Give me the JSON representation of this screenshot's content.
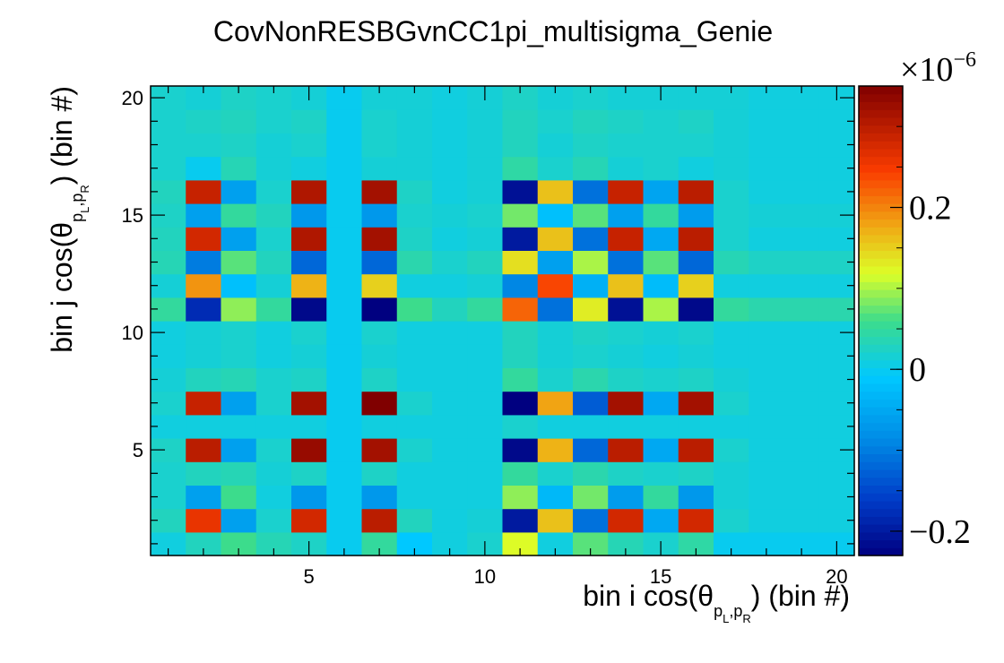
{
  "chart_data": {
    "type": "heatmap",
    "title": "CovNonRESBGvnCC1pi_multisigma_Genie",
    "xlabel": {
      "prefix": "bin i cos(θ",
      "sub1": "p",
      "sub_l": "L",
      "sub_sep": ",",
      "sub2": "p",
      "sub_r": "R",
      "suffix": ") (bin #)"
    },
    "ylabel": {
      "prefix": "bin j cos(θ",
      "sub1": "p",
      "sub_l": "L",
      "sub_sep": ",",
      "sub2": "p",
      "sub_r": "R",
      "suffix": ") (bin #)"
    },
    "xlim": [
      0.5,
      20.5
    ],
    "ylim": [
      0.5,
      20.5
    ],
    "x_tick_labels": [
      "5",
      "10",
      "15",
      "20"
    ],
    "y_tick_labels": [
      "5",
      "10",
      "15",
      "20"
    ],
    "colorbar": {
      "range": [
        -0.23,
        0.35
      ],
      "multiplier_label": "×10",
      "multiplier_exponent": "−6",
      "tick_labels": [
        "−0.2",
        "0",
        "0.2"
      ],
      "tick_values": [
        -0.2,
        0,
        0.2
      ]
    },
    "unit_scale": "1e-6",
    "colors": {
      "low": "#000080",
      "zero": "#00bfff",
      "high": "#800000"
    },
    "grid": false,
    "z": [
      [
        0.01,
        0.03,
        0.06,
        0.035,
        0.025,
        0.0,
        0.05,
        -0.01,
        0.01,
        0.02,
        0.12,
        0.01,
        0.07,
        0.035,
        0.02,
        0.045,
        0.0,
        0.0,
        0.0,
        0.0
      ],
      [
        0.03,
        0.26,
        -0.06,
        0.02,
        0.28,
        0.0,
        0.3,
        0.03,
        0.01,
        0.015,
        -0.2,
        0.16,
        -0.11,
        0.28,
        -0.05,
        0.28,
        0.02,
        0.01,
        0.01,
        0.01
      ],
      [
        0.02,
        -0.06,
        0.06,
        0.01,
        -0.07,
        0.0,
        -0.07,
        0.01,
        0.01,
        0.01,
        0.09,
        -0.03,
        0.08,
        -0.065,
        0.05,
        -0.07,
        0.015,
        0.01,
        0.01,
        0.01
      ],
      [
        0.02,
        0.03,
        0.035,
        0.015,
        0.025,
        0.0,
        0.025,
        0.01,
        0.01,
        0.01,
        0.05,
        0.02,
        0.04,
        0.025,
        0.02,
        0.025,
        0.015,
        0.01,
        0.01,
        0.01
      ],
      [
        0.025,
        0.3,
        -0.06,
        0.02,
        0.33,
        0.0,
        0.32,
        0.02,
        0.01,
        0.01,
        -0.22,
        0.17,
        -0.12,
        0.3,
        -0.05,
        0.3,
        0.02,
        0.01,
        0.01,
        0.01
      ],
      [
        0.01,
        0.01,
        0.01,
        0.01,
        0.01,
        0.0,
        0.01,
        0.01,
        0.01,
        0.01,
        0.02,
        0.01,
        0.01,
        0.01,
        0.01,
        0.01,
        0.01,
        0.01,
        0.01,
        0.01
      ],
      [
        0.02,
        0.29,
        -0.06,
        0.02,
        0.32,
        0.0,
        0.35,
        0.02,
        0.01,
        0.01,
        -0.23,
        0.18,
        -0.13,
        0.32,
        -0.05,
        0.32,
        0.02,
        0.01,
        0.01,
        0.01
      ],
      [
        0.015,
        0.03,
        0.035,
        0.02,
        0.025,
        0.0,
        0.025,
        0.01,
        0.01,
        0.01,
        0.05,
        0.02,
        0.04,
        0.025,
        0.02,
        0.025,
        0.015,
        0.01,
        0.01,
        0.01
      ],
      [
        0.01,
        0.015,
        0.02,
        0.01,
        0.015,
        0.0,
        0.015,
        0.01,
        0.01,
        0.01,
        0.03,
        0.015,
        0.02,
        0.015,
        0.01,
        0.015,
        0.01,
        0.01,
        0.01,
        0.01
      ],
      [
        0.01,
        0.015,
        0.02,
        0.01,
        0.02,
        0.0,
        0.02,
        0.01,
        0.01,
        0.01,
        0.03,
        0.015,
        0.025,
        0.02,
        0.015,
        0.02,
        0.01,
        0.01,
        0.01,
        0.01
      ],
      [
        0.05,
        -0.18,
        0.09,
        0.05,
        -0.22,
        0.0,
        -0.23,
        0.06,
        0.03,
        0.05,
        0.22,
        -0.11,
        0.13,
        -0.21,
        0.1,
        -0.22,
        0.05,
        0.04,
        0.04,
        0.04
      ],
      [
        0.015,
        0.19,
        -0.02,
        0.015,
        0.17,
        0.0,
        0.15,
        0.01,
        0.01,
        0.015,
        -0.09,
        0.24,
        -0.04,
        0.16,
        -0.025,
        0.15,
        0.01,
        0.01,
        0.01,
        0.01
      ],
      [
        0.035,
        -0.1,
        0.07,
        0.03,
        -0.12,
        0.0,
        -0.12,
        0.04,
        0.02,
        0.03,
        0.14,
        -0.06,
        0.1,
        -0.11,
        0.07,
        -0.12,
        0.035,
        0.025,
        0.025,
        0.025
      ],
      [
        0.03,
        0.28,
        -0.06,
        0.02,
        0.31,
        0.0,
        0.32,
        0.025,
        0.01,
        0.015,
        -0.2,
        0.16,
        -0.11,
        0.29,
        -0.05,
        0.3,
        0.02,
        0.01,
        0.01,
        0.01
      ],
      [
        0.025,
        -0.06,
        0.05,
        0.03,
        -0.07,
        0.0,
        -0.07,
        0.02,
        0.015,
        0.02,
        0.08,
        -0.02,
        0.07,
        -0.06,
        0.05,
        -0.065,
        0.02,
        0.015,
        0.015,
        0.015
      ],
      [
        0.03,
        0.29,
        -0.06,
        0.02,
        0.31,
        0.0,
        0.32,
        0.025,
        0.01,
        0.015,
        -0.21,
        0.16,
        -0.11,
        0.29,
        -0.055,
        0.3,
        0.02,
        0.01,
        0.01,
        0.01
      ],
      [
        0.02,
        0.0,
        0.035,
        0.015,
        0.01,
        0.0,
        0.015,
        0.015,
        0.01,
        0.015,
        0.045,
        0.02,
        0.035,
        0.015,
        0.02,
        0.01,
        0.015,
        0.01,
        0.01,
        0.01
      ],
      [
        0.02,
        0.02,
        0.025,
        0.015,
        0.02,
        0.0,
        0.02,
        0.015,
        0.01,
        0.015,
        0.03,
        0.015,
        0.025,
        0.02,
        0.02,
        0.02,
        0.015,
        0.01,
        0.01,
        0.01
      ],
      [
        0.02,
        0.025,
        0.03,
        0.02,
        0.025,
        0.0,
        0.02,
        0.015,
        0.01,
        0.015,
        0.03,
        0.02,
        0.03,
        0.025,
        0.02,
        0.025,
        0.015,
        0.01,
        0.01,
        0.01
      ],
      [
        0.02,
        0.015,
        0.025,
        0.02,
        0.015,
        0.0,
        0.015,
        0.015,
        0.01,
        0.015,
        0.025,
        0.015,
        0.02,
        0.015,
        0.015,
        0.015,
        0.015,
        0.01,
        0.01,
        0.01
      ]
    ]
  }
}
